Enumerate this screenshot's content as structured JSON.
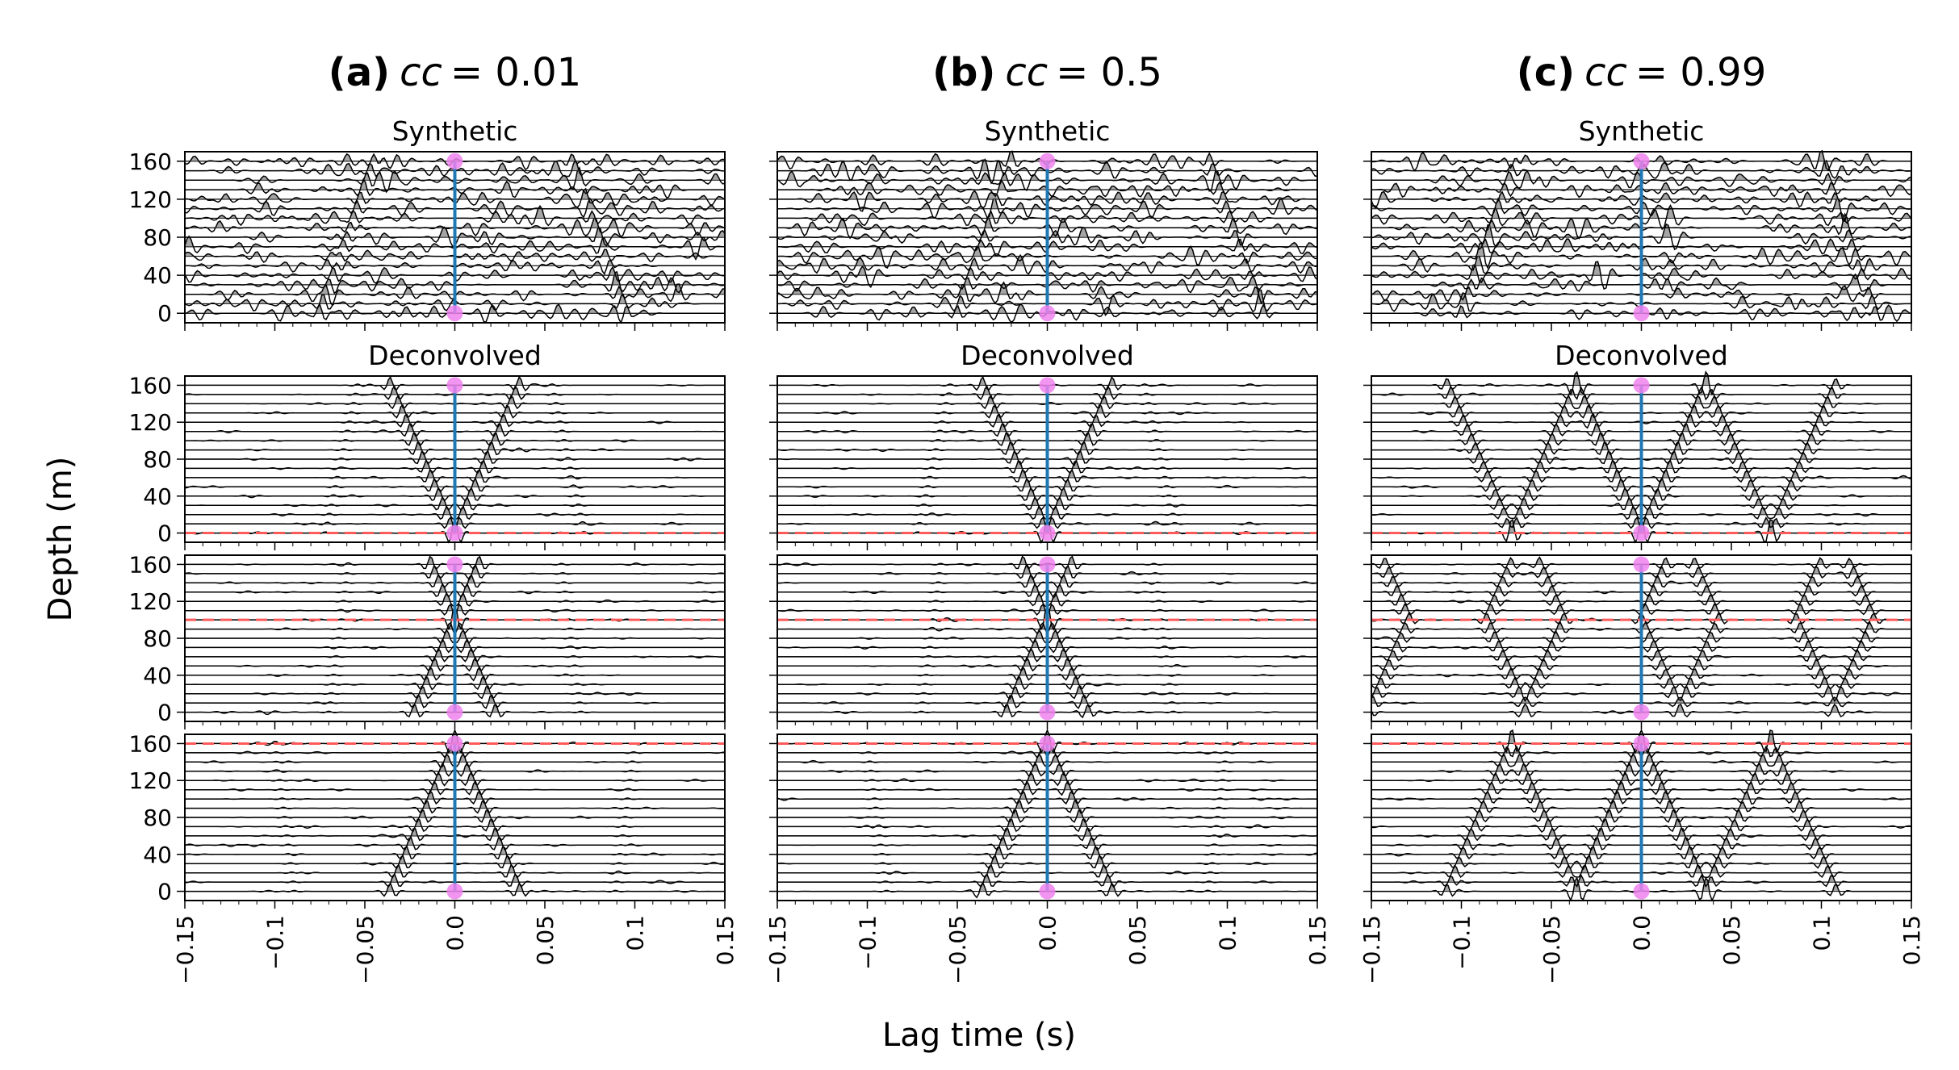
{
  "figure": {
    "ylabel": "Depth (m)",
    "xlabel": "Lag time (s)"
  },
  "chart_data": {
    "type": "line",
    "description_kind": "wiggle trace plot",
    "xlim": [
      -0.15,
      0.15
    ],
    "ylim": [
      170,
      -10
    ],
    "xticks": [
      -0.15,
      -0.1,
      -0.05,
      0.0,
      0.05,
      0.1,
      0.15
    ],
    "xtick_labels": [
      "−0.15",
      "−0.1",
      "−0.05",
      "0.0",
      "0.05",
      "0.1",
      "0.15"
    ],
    "yticks": [
      0,
      40,
      80,
      120,
      160
    ],
    "ytick_labels": [
      "0",
      "40",
      "80",
      "120",
      "160"
    ],
    "trace_depths": [
      0,
      10,
      20,
      30,
      40,
      50,
      60,
      70,
      80,
      90,
      100,
      110,
      120,
      130,
      140,
      150,
      160
    ],
    "source_markers": [
      0,
      160
    ],
    "source_time": 0.0,
    "colors": {
      "trace": "#000000",
      "fill": "#7f7f7f",
      "line": "#1f77b4",
      "marker": "#ee82ee",
      "ref": "#ff5a5a"
    },
    "columns": [
      {
        "label": "(a)",
        "cc_symbol": "cc",
        "cc_value": "= 0.01",
        "cc": 0.01,
        "row_titles": [
          "Synthetic",
          "Deconvolved"
        ],
        "panels": [
          {
            "name": "Synthetic",
            "reference_depth": null
          },
          {
            "name": "Deconvolved",
            "reference_depth": 0
          },
          {
            "name": "Deconvolved",
            "reference_depth": 100
          },
          {
            "name": "Deconvolved",
            "reference_depth": 160
          }
        ]
      },
      {
        "label": "(b)",
        "cc_symbol": "cc",
        "cc_value": "= 0.5",
        "cc": 0.5,
        "row_titles": [
          "Synthetic",
          "Deconvolved"
        ],
        "panels": [
          {
            "name": "Synthetic",
            "reference_depth": null
          },
          {
            "name": "Deconvolved",
            "reference_depth": 0
          },
          {
            "name": "Deconvolved",
            "reference_depth": 100
          },
          {
            "name": "Deconvolved",
            "reference_depth": 160
          }
        ]
      },
      {
        "label": "(c)",
        "cc_symbol": "cc",
        "cc_value": "= 0.99",
        "cc": 0.99,
        "row_titles": [
          "Synthetic",
          "Deconvolved"
        ],
        "panels": [
          {
            "name": "Synthetic",
            "reference_depth": null
          },
          {
            "name": "Deconvolved",
            "reference_depth": 0
          },
          {
            "name": "Deconvolved",
            "reference_depth": 100
          },
          {
            "name": "Deconvolved",
            "reference_depth": 160
          }
        ]
      }
    ]
  }
}
